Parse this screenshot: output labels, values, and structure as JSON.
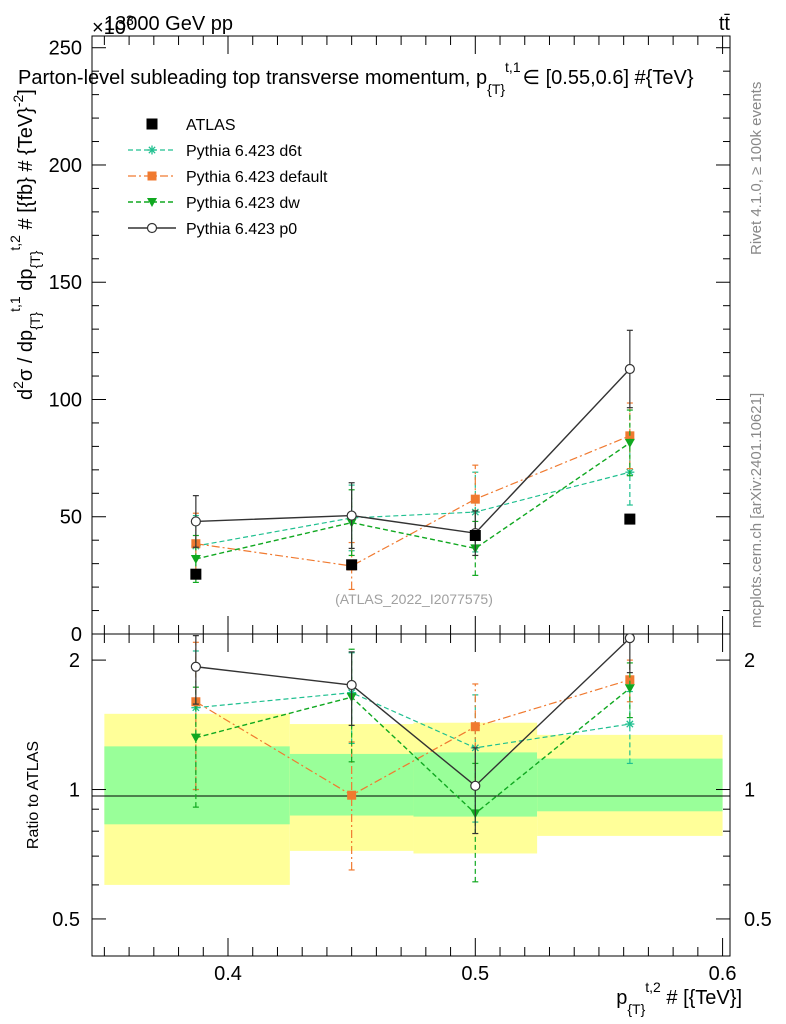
{
  "header": {
    "left_label": "13000 GeV pp",
    "right_label": "tt̄",
    "multiplier": "×10",
    "multiplier_exp": "3"
  },
  "side_labels": {
    "rivet": "Rivet 4.1.0, ≥ 100k events",
    "mcplots": "mcplots.cern.ch [arXiv:2401.10621]"
  },
  "watermark": "(ATLAS_2022_I2077575)",
  "colors": {
    "atlas": "#000000",
    "d6t": "#20c090",
    "default": "#f07a30",
    "dw": "#10a820",
    "p0": "#333333",
    "band_yellow": "#ffff99",
    "band_green": "#99ff99"
  },
  "chart_data": [
    {
      "id": "main",
      "type": "scatter",
      "title": "Parton-level subleading top transverse momentum, p_{T}^{t,1} ∈ [0.55,0.6] #{TeV}",
      "title_parts": {
        "main": "Parton-level subleading top transverse momentum, p",
        "sub": "{T}",
        "sup": "t,1",
        "rest": "∈ [0.55,0.6] #{TeV}"
      },
      "ylabel": "d²σ / dp_{T}^{t,1} dp_{T}^{t,2} # [{fb} # {TeV}^{-2}]",
      "ylabel_parts": [
        "d",
        "2",
        "σ / dp",
        "{T}",
        "t,1",
        " dp",
        "{T}",
        "t,2",
        " # [{fb} # {TeV}",
        "-2",
        "]"
      ],
      "xlim": [
        0.345,
        0.603
      ],
      "ylim": [
        0,
        255
      ],
      "y_scale_factor": 1000,
      "yticks": [
        0,
        50,
        100,
        150,
        200,
        250
      ],
      "ytick_labels": [
        "0",
        "50",
        "100",
        "150",
        "200",
        "250"
      ],
      "series": [
        {
          "name": "ATLAS",
          "key": "atlas",
          "x": [
            0.387,
            0.45,
            0.5,
            0.5625
          ],
          "y": [
            25.5,
            29.5,
            42,
            49
          ],
          "err": [
            0,
            0,
            0,
            0
          ]
        },
        {
          "name": "Pythia 6.423 d6t",
          "key": "d6t",
          "x": [
            0.387,
            0.45,
            0.5,
            0.5625
          ],
          "y": [
            37.5,
            49.5,
            52,
            69
          ],
          "err": [
            13,
            14,
            17,
            14
          ]
        },
        {
          "name": "Pythia 6.423 default",
          "key": "default",
          "x": [
            0.387,
            0.45,
            0.5,
            0.5625
          ],
          "y": [
            38.5,
            29,
            57.5,
            84.5
          ],
          "err": [
            13,
            10,
            14.5,
            14
          ]
        },
        {
          "name": "Pythia 6.423 dw",
          "key": "dw",
          "x": [
            0.387,
            0.45,
            0.5,
            0.5625
          ],
          "y": [
            32,
            47.5,
            36.5,
            81.5
          ],
          "err": [
            10,
            14,
            11.5,
            14
          ]
        },
        {
          "name": "Pythia 6.423 p0",
          "key": "p0",
          "x": [
            0.387,
            0.45,
            0.5,
            0.5625
          ],
          "y": [
            48,
            50.5,
            43,
            113
          ],
          "err": [
            11,
            14,
            9.5,
            16.5
          ]
        }
      ]
    },
    {
      "id": "ratio",
      "type": "line",
      "ylabel": "Ratio to ATLAS",
      "xlabel": "p_{T}^{t,2} # [{TeV}]",
      "xlabel_parts": [
        "p",
        "{T}",
        "t,2",
        " # [{TeV}]"
      ],
      "xlim": [
        0.345,
        0.603
      ],
      "ylim": [
        0.41,
        2.3
      ],
      "yscale": "log",
      "xticks": [
        0.4,
        0.5,
        0.6
      ],
      "xtick_labels": [
        "0.4",
        "0.5",
        "0.6"
      ],
      "yticks": [
        0.5,
        1,
        2
      ],
      "ytick_labels": [
        "0.5",
        "1",
        "2"
      ],
      "bands": [
        {
          "x0": 0.35,
          "x1": 0.425,
          "yellow": [
            0.6,
            1.5
          ],
          "green": [
            0.83,
            1.26
          ]
        },
        {
          "x0": 0.425,
          "x1": 0.475,
          "yellow": [
            0.72,
            1.42
          ],
          "green": [
            0.87,
            1.21
          ]
        },
        {
          "x0": 0.475,
          "x1": 0.525,
          "yellow": [
            0.71,
            1.43
          ],
          "green": [
            0.865,
            1.22
          ]
        },
        {
          "x0": 0.525,
          "x1": 0.6,
          "yellow": [
            0.78,
            1.34
          ],
          "green": [
            0.89,
            1.18
          ]
        }
      ],
      "series": [
        {
          "name": "Pythia 6.423 d6t",
          "key": "d6t",
          "x": [
            0.387,
            0.45,
            0.5,
            0.5625
          ],
          "y": [
            1.55,
            1.68,
            1.25,
            1.42
          ],
          "err": [
            0.55,
            0.4,
            0.41,
            0.27
          ]
        },
        {
          "name": "Pythia 6.423 default",
          "key": "default",
          "x": [
            0.387,
            0.45,
            0.5,
            0.5625
          ],
          "y": [
            1.6,
            0.97,
            1.4,
            1.8
          ],
          "err": [
            0.6,
            0.32,
            0.36,
            0.2
          ]
        },
        {
          "name": "Pythia 6.423 dw",
          "key": "dw",
          "x": [
            0.387,
            0.45,
            0.5,
            0.5625
          ],
          "y": [
            1.32,
            1.64,
            0.88,
            1.72
          ],
          "err": [
            0.41,
            0.48,
            0.27,
            0.25
          ]
        },
        {
          "name": "Pythia 6.423 p0",
          "key": "p0",
          "x": [
            0.387,
            0.45,
            0.5,
            0.5625
          ],
          "y": [
            1.93,
            1.75,
            1.02,
            2.25
          ],
          "err": [
            0.35,
            0.34,
            0.23,
            0.38
          ]
        }
      ]
    }
  ]
}
